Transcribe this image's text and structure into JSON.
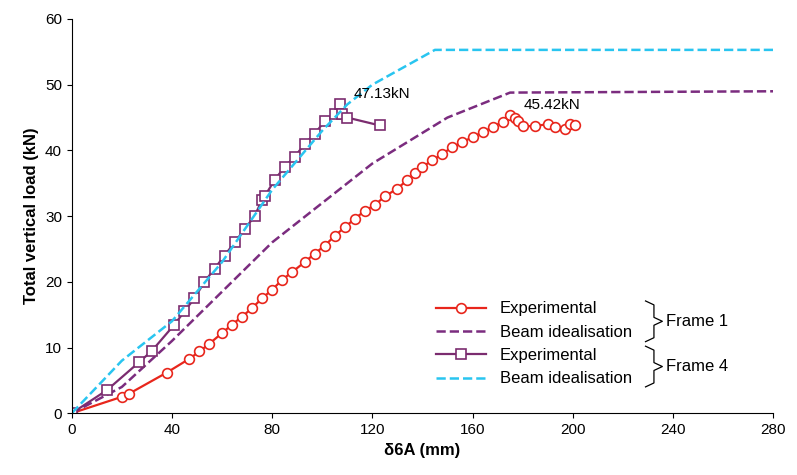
{
  "chart_data": {
    "type": "line",
    "x_label": "δ6A (mm)",
    "y_label": "Total vertical load (kN)",
    "xlim": [
      0,
      280
    ],
    "xticks": [
      0,
      40,
      80,
      120,
      160,
      200,
      240,
      280
    ],
    "ylim": [
      0,
      60
    ],
    "yticks": [
      0,
      10,
      20,
      30,
      40,
      50,
      60
    ],
    "grid": false,
    "legend": "lower right",
    "legend_groups": [
      "Frame 1",
      "Frame 4"
    ],
    "series": [
      {
        "name": "Experimental",
        "color": "#e8261c",
        "marker": "o",
        "line_style": "solid",
        "x": [
          0,
          20,
          23,
          38,
          47,
          51,
          55,
          60,
          64,
          68,
          72,
          76,
          80,
          84,
          88,
          93,
          97,
          101,
          105,
          109,
          113,
          117,
          121,
          125,
          130,
          134,
          137,
          140,
          144,
          148,
          152,
          156,
          160,
          164,
          168,
          172,
          175,
          177,
          178,
          180,
          185,
          190,
          193,
          197,
          199,
          201
        ],
        "values": [
          0,
          2.5,
          3,
          6.2,
          8.3,
          9.4,
          10.6,
          12.2,
          13.5,
          14.7,
          16,
          17.5,
          18.8,
          20.3,
          21.5,
          23,
          24.3,
          25.5,
          27,
          28.3,
          29.6,
          30.8,
          31.7,
          33,
          34.2,
          35.5,
          36.5,
          37.5,
          38.5,
          39.5,
          40.5,
          41.3,
          42,
          42.8,
          43.5,
          44.4,
          45.42,
          45,
          44.5,
          43.7,
          43.7,
          44,
          43.5,
          43.3,
          44,
          43.8
        ]
      },
      {
        "name": "Beam idealisation",
        "color": "#7b2c7f",
        "marker": "none",
        "line_style": "dashed",
        "x": [
          0,
          20,
          40,
          80,
          120,
          150,
          175,
          280
        ],
        "values": [
          0,
          4,
          11,
          26,
          38,
          45,
          48.8,
          49
        ]
      },
      {
        "name": "Experimental",
        "color": "#7b2c6f",
        "marker": "s",
        "line_style": "solid",
        "x": [
          0,
          14,
          27,
          32,
          41,
          45,
          49,
          53,
          57,
          61,
          65,
          69,
          73,
          76,
          77,
          81,
          85,
          89,
          93,
          97,
          101,
          105,
          107,
          108,
          110,
          123
        ],
        "values": [
          0,
          3.5,
          7.8,
          9.5,
          13.5,
          15.5,
          17.5,
          20,
          22,
          24,
          26,
          28,
          30,
          32.5,
          33,
          35.5,
          37.5,
          39,
          41,
          42.5,
          44.5,
          45.5,
          47.13,
          45.5,
          45,
          43.8
        ]
      },
      {
        "name": "Beam idealisation",
        "color": "#29c5f0",
        "marker": "none",
        "line_style": "dashed",
        "x": [
          0,
          20,
          40,
          60,
          80,
          100,
          110,
          120,
          145,
          280
        ],
        "values": [
          0,
          8,
          14,
          23,
          34,
          43,
          47,
          50,
          55.3,
          55.3
        ]
      }
    ],
    "annotations": [
      {
        "text": "47.13kN",
        "x": 107,
        "y": 47.13
      },
      {
        "text": "45.42kN",
        "x": 175,
        "y": 45.42
      }
    ]
  }
}
